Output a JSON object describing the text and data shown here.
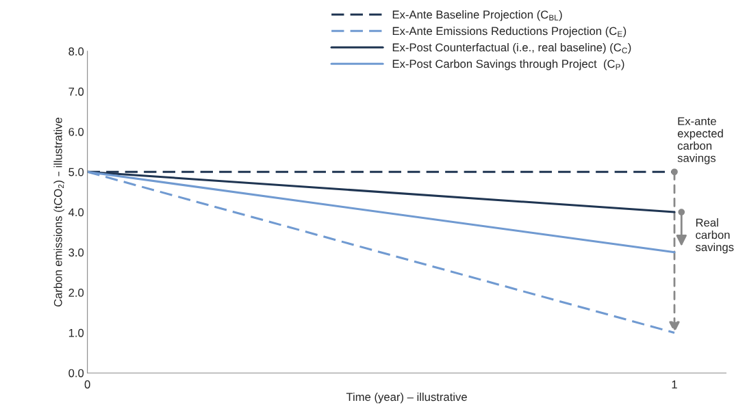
{
  "chart_data": {
    "type": "line",
    "xlabel": "Time (year) – illustrative",
    "ylabel": "Carbon emissions (tCO$_{2}$) – illustrative",
    "x": [
      0,
      1
    ],
    "xlim": [
      0,
      1.088
    ],
    "xticks": [
      0,
      1
    ],
    "ylim": [
      0,
      8
    ],
    "yticks": [
      {
        "value": 0,
        "label": "0.0"
      },
      {
        "value": 1,
        "label": "1.0"
      },
      {
        "value": 2,
        "label": "2.0"
      },
      {
        "value": 3,
        "label": "3.0"
      },
      {
        "value": 4,
        "label": "4.0"
      },
      {
        "value": 5,
        "label": "5.0"
      },
      {
        "value": 6,
        "label": "6.0"
      },
      {
        "value": 7,
        "label": "7.0"
      },
      {
        "value": 8,
        "label": "8.0"
      }
    ],
    "series": [
      {
        "name": "Ex-Ante Baseline Projection (C$_{BL}$)",
        "color": "#1f3552",
        "line_style": "dashed",
        "values": [
          5,
          5
        ]
      },
      {
        "name": "Ex-Ante Emissions Reductions Projection (C$_{E}$)",
        "color": "#709ad1",
        "line_style": "dashed",
        "values": [
          5,
          1
        ]
      },
      {
        "name": "Ex-Post Counterfactual (i.e., real baseline) (C$_{C}$)",
        "color": "#1f3552",
        "line_style": "solid",
        "values": [
          5,
          4
        ]
      },
      {
        "name": "Ex-Post Carbon Savings through Project  (C$_{P}$)",
        "color": "#709ad1",
        "line_style": "solid",
        "values": [
          5,
          3
        ]
      }
    ],
    "annotations": [
      {
        "text": "Ex-ante\nexpected\ncarbon\nsavings",
        "x": 1,
        "y": 5
      },
      {
        "text": "Real\ncarbon\nsavings",
        "x": 1,
        "y": 4
      }
    ],
    "legend": "top right",
    "grid": false
  }
}
